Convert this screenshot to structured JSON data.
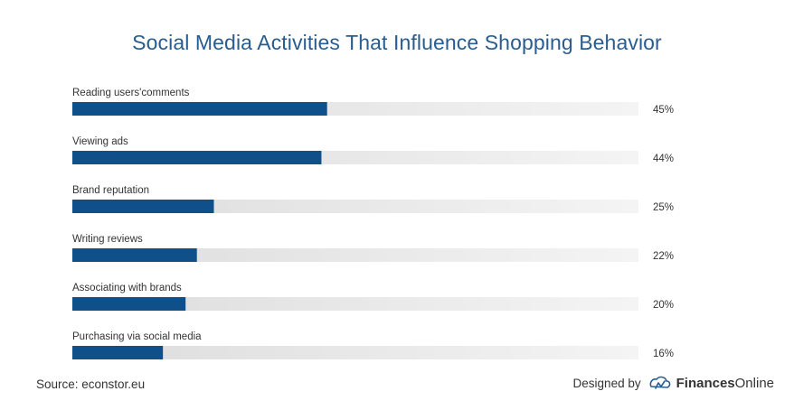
{
  "chart_data": {
    "type": "bar",
    "orientation": "horizontal",
    "title": "Social Media Activities That Influence Shopping Behavior",
    "categories": [
      "Reading users'comments",
      "Viewing ads",
      "Brand reputation",
      "Writing reviews",
      "Associating with brands",
      "Purchasing via social media"
    ],
    "values": [
      45,
      44,
      25,
      22,
      20,
      16
    ],
    "value_labels": [
      "45%",
      "44%",
      "25%",
      "22%",
      "20%",
      "16%"
    ],
    "xlim": [
      0,
      100
    ],
    "grid": false,
    "bar_color": "#0f4f8a",
    "track_color": "#e6e6e6",
    "title_color": "#2a5d8f"
  },
  "footer": {
    "source": "Source: econstor.eu",
    "designed_by": "Designed by",
    "brand_bold": "Finances",
    "brand_rest": "Online",
    "logo_icon": "finances-online-logo-icon"
  }
}
